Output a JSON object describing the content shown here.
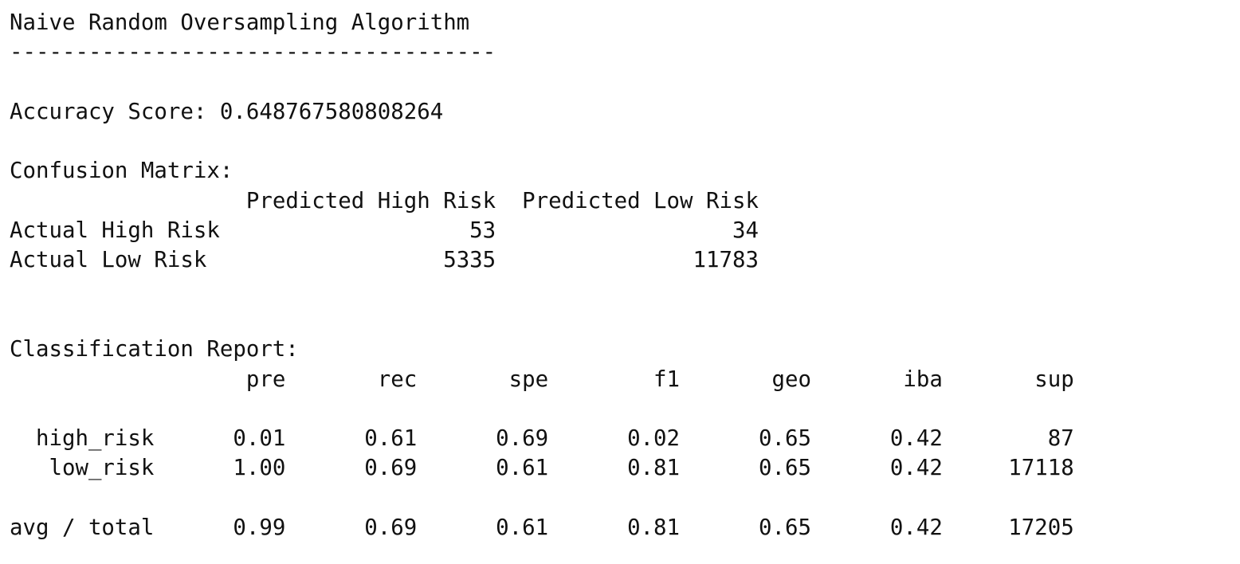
{
  "header": {
    "title": "Naive Random Oversampling Algorithm",
    "separator": "-------------------------------------"
  },
  "accuracy": {
    "label": "Accuracy Score:",
    "value": "0.648767580808264"
  },
  "confusion_matrix": {
    "heading": "Confusion Matrix:",
    "columns": [
      "Predicted High Risk",
      "Predicted Low Risk"
    ],
    "rows": [
      {
        "label": "Actual High Risk",
        "values": [
          "53",
          "34"
        ]
      },
      {
        "label": "Actual Low Risk",
        "values": [
          "5335",
          "11783"
        ]
      }
    ]
  },
  "classification_report": {
    "heading": "Classification Report:",
    "columns": [
      "pre",
      "rec",
      "spe",
      "f1",
      "geo",
      "iba",
      "sup"
    ],
    "rows": [
      {
        "label": "high_risk",
        "values": [
          "0.01",
          "0.61",
          "0.69",
          "0.02",
          "0.65",
          "0.42",
          "87"
        ]
      },
      {
        "label": "low_risk",
        "values": [
          "1.00",
          "0.69",
          "0.61",
          "0.81",
          "0.65",
          "0.42",
          "17118"
        ]
      }
    ],
    "total": {
      "label": "avg / total",
      "values": [
        "0.99",
        "0.69",
        "0.61",
        "0.81",
        "0.65",
        "0.42",
        "17205"
      ]
    }
  }
}
